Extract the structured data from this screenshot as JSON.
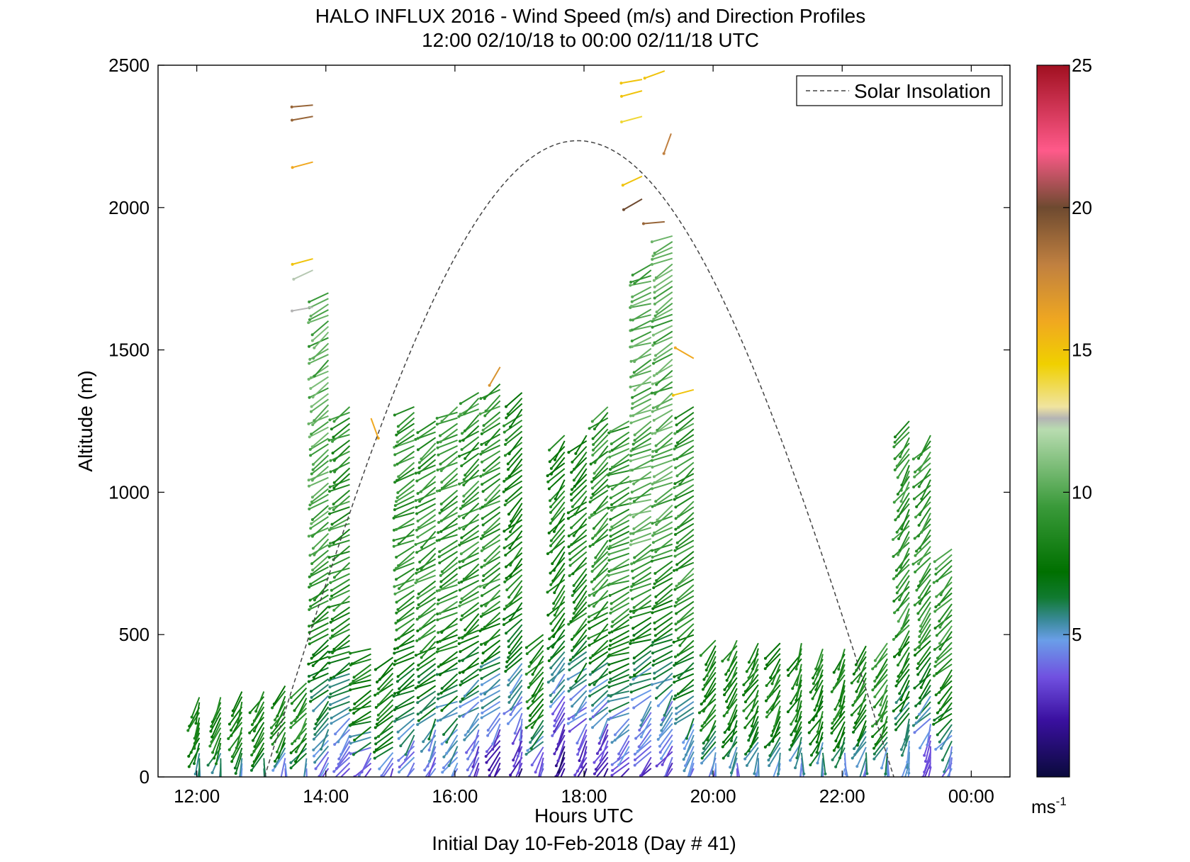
{
  "chart_data": {
    "type": "quiver",
    "title": "HALO INFLUX 2016 - Wind Speed (m/s) and Direction Profiles",
    "subtitle": "12:00 02/10/18 to 00:00 02/11/18  UTC",
    "xlabel": "Hours UTC",
    "xlabel2": "Initial Day 10-Feb-2018 (Day # 41)",
    "ylabel": "Altitude (m)",
    "x_ticks": [
      "12:00",
      "14:00",
      "16:00",
      "18:00",
      "20:00",
      "22:00",
      "00:00"
    ],
    "x_tick_hours": [
      12,
      14,
      16,
      18,
      20,
      22,
      24
    ],
    "xlim": [
      11.4,
      24.6
    ],
    "ylim": [
      0,
      2500
    ],
    "y_ticks": [
      "0",
      "500",
      "1000",
      "1500",
      "2000",
      "2500"
    ],
    "y_tick_values": [
      0,
      500,
      1000,
      1500,
      2000,
      2500
    ],
    "legend": {
      "label": "Solar Insolation",
      "position": "top-right"
    },
    "solar_insolation": {
      "start_hour": 13.05,
      "end_hour": 22.8,
      "peak_hour": 17.9,
      "peak_altitude": 2235
    },
    "colorbar": {
      "min": 0,
      "max": 25,
      "tick_values": [
        5,
        10,
        15,
        20,
        25
      ],
      "ticks": [
        "5",
        "10",
        "15",
        "20",
        "25"
      ],
      "unit": "ms",
      "unit_exp": "-1",
      "stops": [
        {
          "v": 0,
          "c": "#0a0a3c"
        },
        {
          "v": 2,
          "c": "#3a10a0"
        },
        {
          "v": 3.5,
          "c": "#7050e0"
        },
        {
          "v": 4.8,
          "c": "#6a9ee8"
        },
        {
          "v": 5.5,
          "c": "#3a8a9a"
        },
        {
          "v": 6.3,
          "c": "#107a30"
        },
        {
          "v": 7.2,
          "c": "#007000"
        },
        {
          "v": 9.5,
          "c": "#3a9a3a"
        },
        {
          "v": 12.2,
          "c": "#b8dcb0"
        },
        {
          "v": 12.6,
          "c": "#b4b4b4"
        },
        {
          "v": 13,
          "c": "#f0e4a0"
        },
        {
          "v": 14.5,
          "c": "#f0d000"
        },
        {
          "v": 16,
          "c": "#f0a820"
        },
        {
          "v": 18,
          "c": "#c08040"
        },
        {
          "v": 20,
          "c": "#6e4a30"
        },
        {
          "v": 22,
          "c": "#ff5a8a"
        },
        {
          "v": 25,
          "c": "#a01020"
        }
      ]
    },
    "profiles": [
      {
        "t": 12.1,
        "top": 280,
        "dir": 200,
        "spd": [
          5,
          8
        ]
      },
      {
        "t": 12.43,
        "top": 280,
        "dir": 205,
        "spd": [
          5,
          8
        ]
      },
      {
        "t": 12.76,
        "top": 300,
        "dir": 205,
        "spd": [
          5,
          8
        ]
      },
      {
        "t": 13.1,
        "top": 300,
        "dir": 210,
        "spd": [
          5,
          8
        ]
      },
      {
        "t": 13.43,
        "top": 320,
        "dir": 210,
        "spd": [
          4,
          8
        ]
      },
      {
        "t": 13.76,
        "top": 330,
        "dir": 215,
        "spd": [
          4,
          9
        ]
      },
      {
        "t": 14.1,
        "top": 1700,
        "dir": 235,
        "spd": [
          4,
          10
        ]
      },
      {
        "t": 14.43,
        "top": 1300,
        "dir": 240,
        "spd": [
          3,
          9
        ]
      },
      {
        "t": 14.76,
        "top": 450,
        "dir": 245,
        "spd": [
          3,
          8
        ]
      },
      {
        "t": 15.1,
        "top": 420,
        "dir": 230,
        "spd": [
          4,
          8
        ]
      },
      {
        "t": 15.43,
        "top": 1300,
        "dir": 240,
        "spd": [
          4,
          9
        ]
      },
      {
        "t": 15.76,
        "top": 1250,
        "dir": 235,
        "spd": [
          4,
          9
        ]
      },
      {
        "t": 16.1,
        "top": 1300,
        "dir": 240,
        "spd": [
          4,
          9
        ]
      },
      {
        "t": 16.43,
        "top": 1350,
        "dir": 235,
        "spd": [
          3,
          9
        ]
      },
      {
        "t": 16.76,
        "top": 1380,
        "dir": 235,
        "spd": [
          2,
          9
        ]
      },
      {
        "t": 17.1,
        "top": 1350,
        "dir": 225,
        "spd": [
          2,
          8
        ]
      },
      {
        "t": 17.43,
        "top": 500,
        "dir": 220,
        "spd": [
          3,
          8
        ]
      },
      {
        "t": 17.76,
        "top": 1200,
        "dir": 220,
        "spd": [
          1,
          8
        ]
      },
      {
        "t": 18.1,
        "top": 1200,
        "dir": 225,
        "spd": [
          2,
          8
        ]
      },
      {
        "t": 18.43,
        "top": 1300,
        "dir": 230,
        "spd": [
          2,
          9
        ]
      },
      {
        "t": 18.76,
        "top": 1250,
        "dir": 245,
        "spd": [
          3,
          9
        ]
      },
      {
        "t": 19.1,
        "top": 1800,
        "dir": 245,
        "spd": [
          3,
          10
        ]
      },
      {
        "t": 19.43,
        "top": 1900,
        "dir": 240,
        "spd": [
          3,
          10
        ]
      },
      {
        "t": 19.76,
        "top": 1300,
        "dir": 235,
        "spd": [
          4,
          9
        ]
      },
      {
        "t": 20.1,
        "top": 480,
        "dir": 215,
        "spd": [
          4,
          8
        ]
      },
      {
        "t": 20.43,
        "top": 480,
        "dir": 210,
        "spd": [
          4,
          8
        ]
      },
      {
        "t": 20.76,
        "top": 470,
        "dir": 210,
        "spd": [
          4,
          8
        ]
      },
      {
        "t": 21.1,
        "top": 470,
        "dir": 210,
        "spd": [
          4,
          8
        ]
      },
      {
        "t": 21.43,
        "top": 470,
        "dir": 205,
        "spd": [
          4,
          8
        ]
      },
      {
        "t": 21.76,
        "top": 450,
        "dir": 205,
        "spd": [
          4,
          8
        ]
      },
      {
        "t": 22.1,
        "top": 450,
        "dir": 205,
        "spd": [
          4,
          8
        ]
      },
      {
        "t": 22.43,
        "top": 460,
        "dir": 210,
        "spd": [
          4,
          8
        ]
      },
      {
        "t": 22.76,
        "top": 470,
        "dir": 210,
        "spd": [
          4,
          9
        ]
      },
      {
        "t": 23.1,
        "top": 1250,
        "dir": 215,
        "spd": [
          4,
          9
        ]
      },
      {
        "t": 23.43,
        "top": 1200,
        "dir": 220,
        "spd": [
          3,
          9
        ]
      },
      {
        "t": 23.76,
        "top": 800,
        "dir": 225,
        "spd": [
          4,
          9
        ]
      }
    ],
    "upper_points": [
      {
        "t": 13.8,
        "alt": 2360,
        "dir": 265,
        "spd": 19
      },
      {
        "t": 13.8,
        "alt": 2320,
        "dir": 260,
        "spd": 19
      },
      {
        "t": 13.8,
        "alt": 2160,
        "dir": 255,
        "spd": 16
      },
      {
        "t": 13.8,
        "alt": 1820,
        "dir": 255,
        "spd": 15
      },
      {
        "t": 13.8,
        "alt": 1780,
        "dir": 245,
        "spd": 12.4
      },
      {
        "t": 13.8,
        "alt": 1650,
        "dir": 260,
        "spd": 12.6
      },
      {
        "t": 18.9,
        "alt": 2450,
        "dir": 260,
        "spd": 15
      },
      {
        "t": 18.9,
        "alt": 2410,
        "dir": 255,
        "spd": 15
      },
      {
        "t": 18.9,
        "alt": 2320,
        "dir": 255,
        "spd": 14
      },
      {
        "t": 18.9,
        "alt": 2110,
        "dir": 245,
        "spd": 15
      },
      {
        "t": 18.9,
        "alt": 2030,
        "dir": 240,
        "spd": 20
      },
      {
        "t": 19.25,
        "alt": 2480,
        "dir": 250,
        "spd": 15
      },
      {
        "t": 19.25,
        "alt": 1950,
        "dir": 265,
        "spd": 19
      },
      {
        "t": 19.35,
        "alt": 2260,
        "dir": 200,
        "spd": 18
      },
      {
        "t": 16.7,
        "alt": 1440,
        "dir": 210,
        "spd": 17
      },
      {
        "t": 14.7,
        "alt": 1260,
        "dir": 160,
        "spd": 16
      },
      {
        "t": 19.7,
        "alt": 1470,
        "dir": 300,
        "spd": 16
      },
      {
        "t": 19.7,
        "alt": 1360,
        "dir": 255,
        "spd": 15
      }
    ]
  }
}
